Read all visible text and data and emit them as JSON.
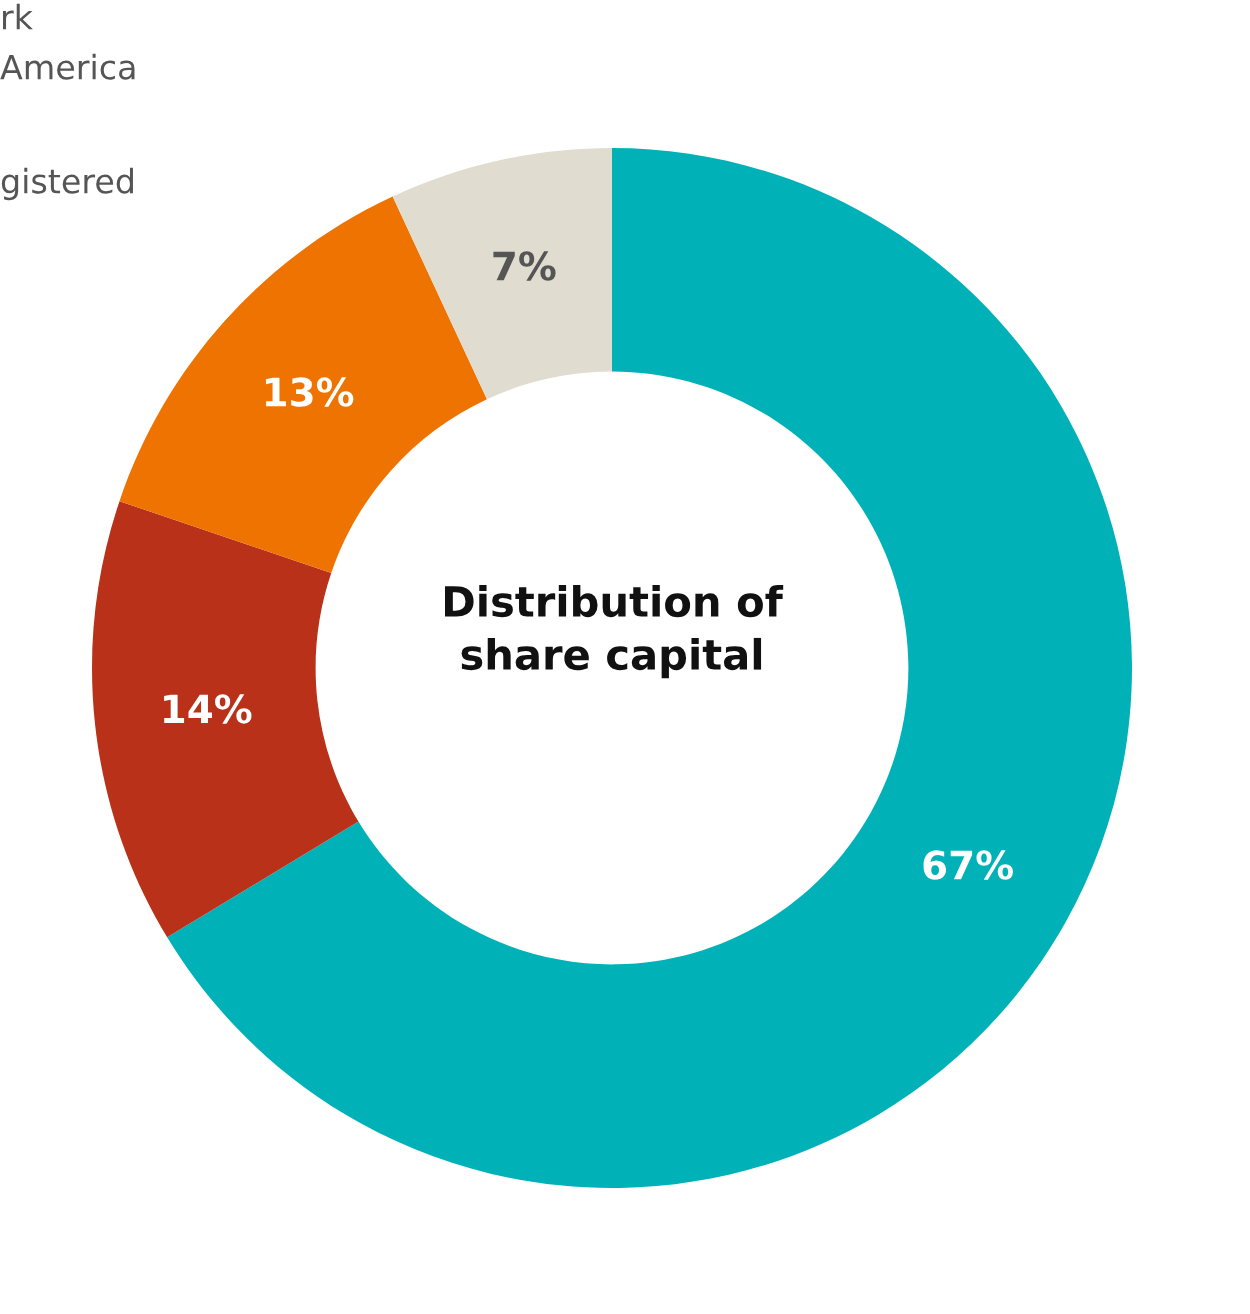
{
  "chart_data": {
    "type": "donut",
    "title": "Distribution of\nshare capital",
    "categories": [
      null,
      null,
      null,
      null
    ],
    "values": [
      67,
      14,
      13,
      7
    ],
    "colors": [
      "#00b2b8",
      "#b93118",
      "#ef7300",
      "#e0ddd0"
    ],
    "value_labels": [
      "67%",
      "14%",
      "13%",
      "7%"
    ],
    "annotations": [
      "rk",
      "America",
      "gistered"
    ],
    "legend": false
  }
}
